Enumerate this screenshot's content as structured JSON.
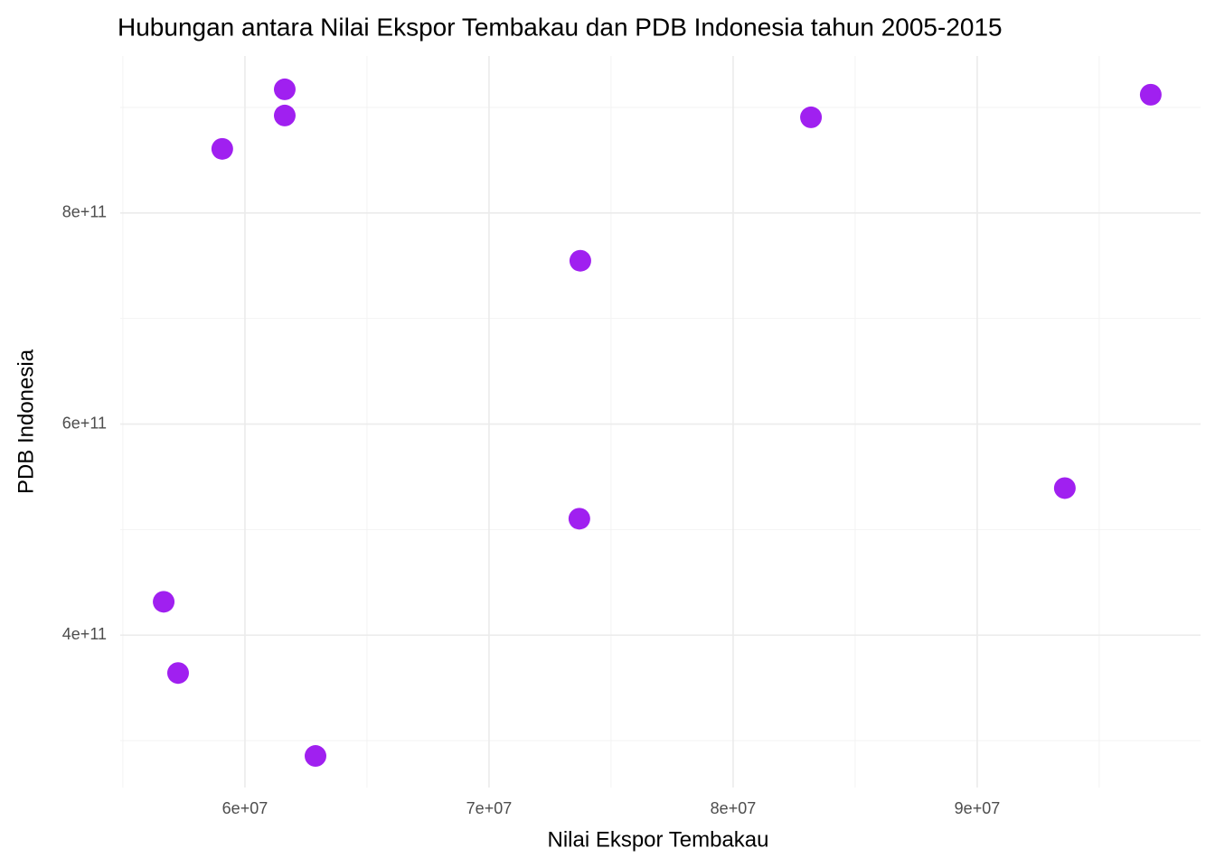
{
  "chart_data": {
    "type": "scatter",
    "title": "Hubungan antara Nilai Ekspor Tembakau dan PDB Indonesia tahun 2005-2015",
    "x_label": "Nilai Ekspor Tembakau",
    "y_label": "PDB Indonesia",
    "x": [
      56670000,
      57260000,
      62890000,
      59070000,
      61630000,
      61630000,
      73740000,
      73700000,
      83190000,
      93590000,
      97110000
    ],
    "values": [
      431600000000,
      364100000000,
      285500000000,
      860700000000,
      917100000000,
      892300000000,
      754700000000,
      510300000000,
      890600000000,
      539300000000,
      912000000000
    ],
    "color": "#a020f0",
    "xlim": [
      54890000,
      99150000
    ],
    "ylim": [
      255600000000,
      948700000000
    ],
    "xticks": [
      {
        "value": 60000000,
        "label": "6e+07"
      },
      {
        "value": 70000000,
        "label": "7e+07"
      },
      {
        "value": 80000000,
        "label": "8e+07"
      },
      {
        "value": 90000000,
        "label": "9e+07"
      }
    ],
    "yticks": [
      {
        "value": 400000000000,
        "label": "4e+11"
      },
      {
        "value": 600000000000,
        "label": "6e+11"
      },
      {
        "value": 800000000000,
        "label": "8e+11"
      }
    ],
    "x_minor_ticks": [
      55000000,
      65000000,
      75000000,
      85000000,
      95000000
    ],
    "y_minor_ticks": [
      300000000000,
      500000000000,
      700000000000,
      900000000000
    ],
    "grid": true
  }
}
